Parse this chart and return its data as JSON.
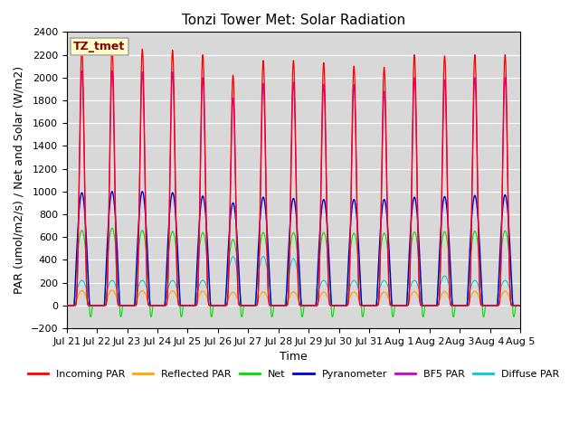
{
  "title": "Tonzi Tower Met: Solar Radiation",
  "ylabel": "PAR (umol/m2/s) / Net and Solar (W/m2)",
  "xlabel": "Time",
  "ylim": [
    -200,
    2400
  ],
  "yticks": [
    -200,
    0,
    200,
    400,
    600,
    800,
    1000,
    1200,
    1400,
    1600,
    1800,
    2000,
    2200,
    2400
  ],
  "background_color": "#d8d8d8",
  "grid_color": "#ffffff",
  "series": {
    "incoming_par": {
      "color": "#ff0000",
      "label": "Incoming PAR"
    },
    "reflected_par": {
      "color": "#ffa500",
      "label": "Reflected PAR"
    },
    "net": {
      "color": "#00dd00",
      "label": "Net"
    },
    "pyranometer": {
      "color": "#0000cc",
      "label": "Pyranometer"
    },
    "bf5_par": {
      "color": "#cc00cc",
      "label": "BF5 PAR"
    },
    "diffuse_par": {
      "color": "#00cccc",
      "label": "Diffuse PAR"
    }
  },
  "day_labels": [
    "Jul 21",
    "Jul 22",
    "Jul 23",
    "Jul 24",
    "Jul 25",
    "Jul 26",
    "Jul 27",
    "Jul 28",
    "Jul 29",
    "Jul 30",
    "Jul 31",
    "Aug 1",
    "Aug 2",
    "Aug 3",
    "Aug 4",
    "Aug 5"
  ],
  "n_days": 15,
  "ppd": 480,
  "tz_label": "TZ_tmet",
  "title_fontsize": 11,
  "label_fontsize": 9,
  "tick_fontsize": 8,
  "legend_fontsize": 8
}
